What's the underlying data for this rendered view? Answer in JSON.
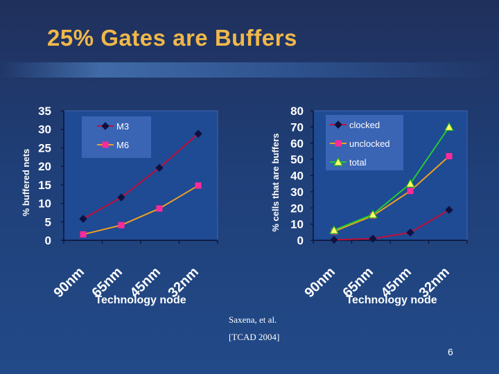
{
  "slide": {
    "title": "25% Gates are Buffers",
    "credit_line1": "Saxena, et al.",
    "credit_line2": "[TCAD 2004]",
    "page_number": "6"
  },
  "colors": {
    "title": "#f0b84a",
    "m3": "#c0103a",
    "m6": "#f0a020",
    "clocked": "#c0103a",
    "unclocked": "#f0a020",
    "total": "#22cc33",
    "plot_bg": "#1f4a94",
    "legend_bg": "#3a64b4"
  },
  "chart_data": [
    {
      "type": "line",
      "categories": [
        "90nm",
        "65nm",
        "45nm",
        "32nm"
      ],
      "xlabel": "Technology node",
      "ylabel": "% buffered nets",
      "ylim": [
        0,
        35
      ],
      "yticks": [
        0,
        5,
        10,
        15,
        20,
        25,
        30,
        35
      ],
      "legend_position": "top-left",
      "series": [
        {
          "name": "M3",
          "values": [
            5.8,
            11.6,
            19.6,
            28.8
          ],
          "marker": "diamond",
          "color_key": "m3"
        },
        {
          "name": "M6",
          "values": [
            1.6,
            4.1,
            8.6,
            14.8
          ],
          "marker": "square",
          "color_key": "m6"
        }
      ]
    },
    {
      "type": "line",
      "categories": [
        "90nm",
        "65nm",
        "45nm",
        "32nm"
      ],
      "xlabel": "Technology node",
      "ylabel": "% cells that are buffers",
      "ylim": [
        0,
        80
      ],
      "yticks": [
        0,
        10,
        20,
        30,
        40,
        50,
        60,
        70,
        80
      ],
      "legend_position": "top-left",
      "series": [
        {
          "name": "clocked",
          "values": [
            0.3,
            1.0,
            4.8,
            18.8
          ],
          "marker": "diamond",
          "color_key": "clocked"
        },
        {
          "name": "unclocked",
          "values": [
            5.5,
            15.2,
            30.5,
            52.0
          ],
          "marker": "square",
          "color_key": "unclocked"
        },
        {
          "name": "total",
          "values": [
            6.3,
            16.0,
            35.0,
            70.0
          ],
          "marker": "triangle",
          "color_key": "total"
        }
      ]
    }
  ]
}
